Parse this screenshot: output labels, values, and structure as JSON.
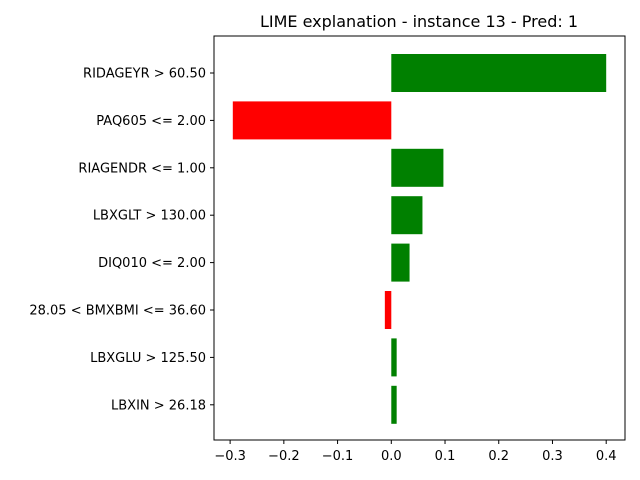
{
  "chart_data": {
    "type": "bar",
    "orientation": "horizontal",
    "title": "LIME explanation - instance 13 - Pred: 1",
    "xlabel": "",
    "ylabel": "",
    "categories": [
      "RIDAGEYR > 60.50",
      "PAQ605 <= 2.00",
      "RIAGENDR <= 1.00",
      "LBXGLT > 130.00",
      "DIQ010 <= 2.00",
      "28.05 < BMXBMI <= 36.60",
      "LBXGLU > 125.50",
      "LBXIN > 26.18"
    ],
    "values": [
      0.4,
      -0.295,
      0.097,
      0.058,
      0.034,
      -0.012,
      0.01,
      0.01
    ],
    "xlim": [
      -0.33,
      0.435
    ],
    "xticks": [
      -0.3,
      -0.2,
      -0.1,
      0.0,
      0.1,
      0.2,
      0.3,
      0.4
    ],
    "xtick_labels": [
      "−0.3",
      "−0.2",
      "−0.1",
      "0.0",
      "0.1",
      "0.2",
      "0.3",
      "0.4"
    ],
    "colors": {
      "positive": "#008000",
      "negative": "#ff0000"
    },
    "grid": false,
    "legend": false
  }
}
